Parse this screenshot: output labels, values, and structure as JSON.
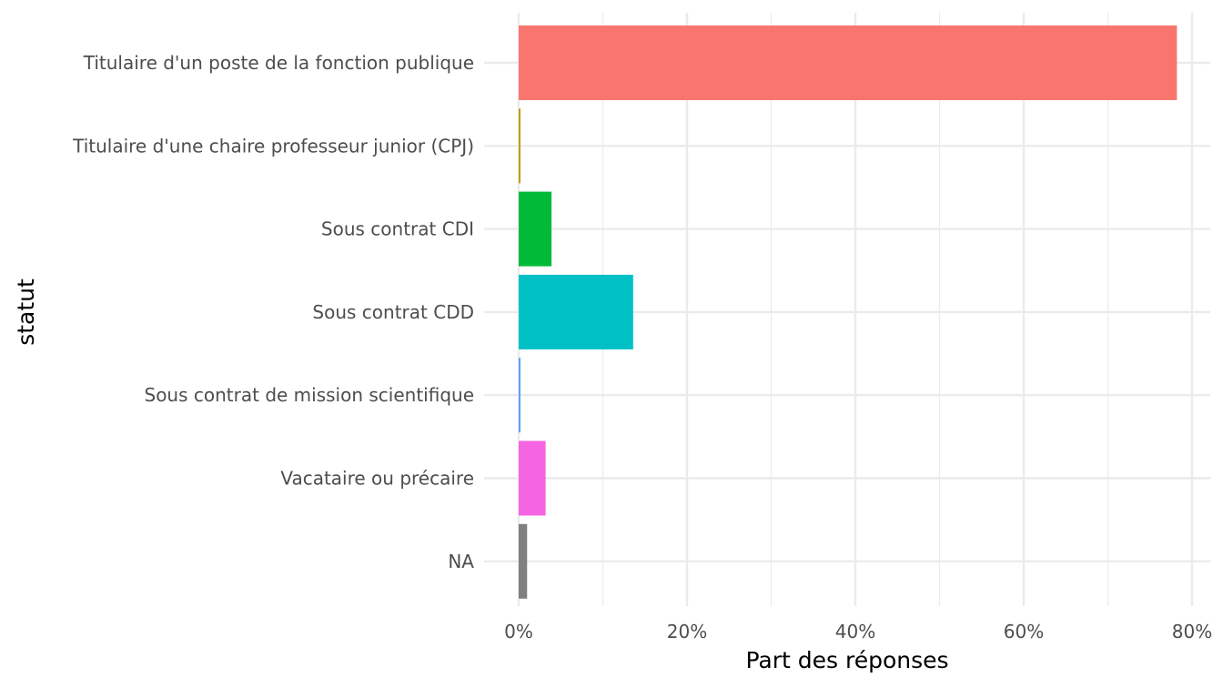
{
  "chart_data": {
    "type": "bar",
    "orientation": "horizontal",
    "xlabel": "Part des réponses",
    "ylabel": "statut",
    "xlim": [
      0,
      0.8
    ],
    "x_ticks": [
      0,
      0.2,
      0.4,
      0.6,
      0.8
    ],
    "x_tick_labels": [
      "0%",
      "20%",
      "40%",
      "60%",
      "80%"
    ],
    "grid": true,
    "legend": "none",
    "categories": [
      "Titulaire d'un poste de la fonction publique",
      "Titulaire d'une chaire professeur junior (CPJ)",
      "Sous contrat CDI",
      "Sous contrat CDD",
      "Sous contrat de mission scientifique",
      "Vacataire ou précaire",
      "NA"
    ],
    "values": [
      0.782,
      0.002,
      0.039,
      0.136,
      0.002,
      0.032,
      0.01
    ],
    "colors": [
      "#F8766D",
      "#C49A00",
      "#00BA38",
      "#00C0C5",
      "#619CFF",
      "#F564E3",
      "#808080"
    ]
  }
}
